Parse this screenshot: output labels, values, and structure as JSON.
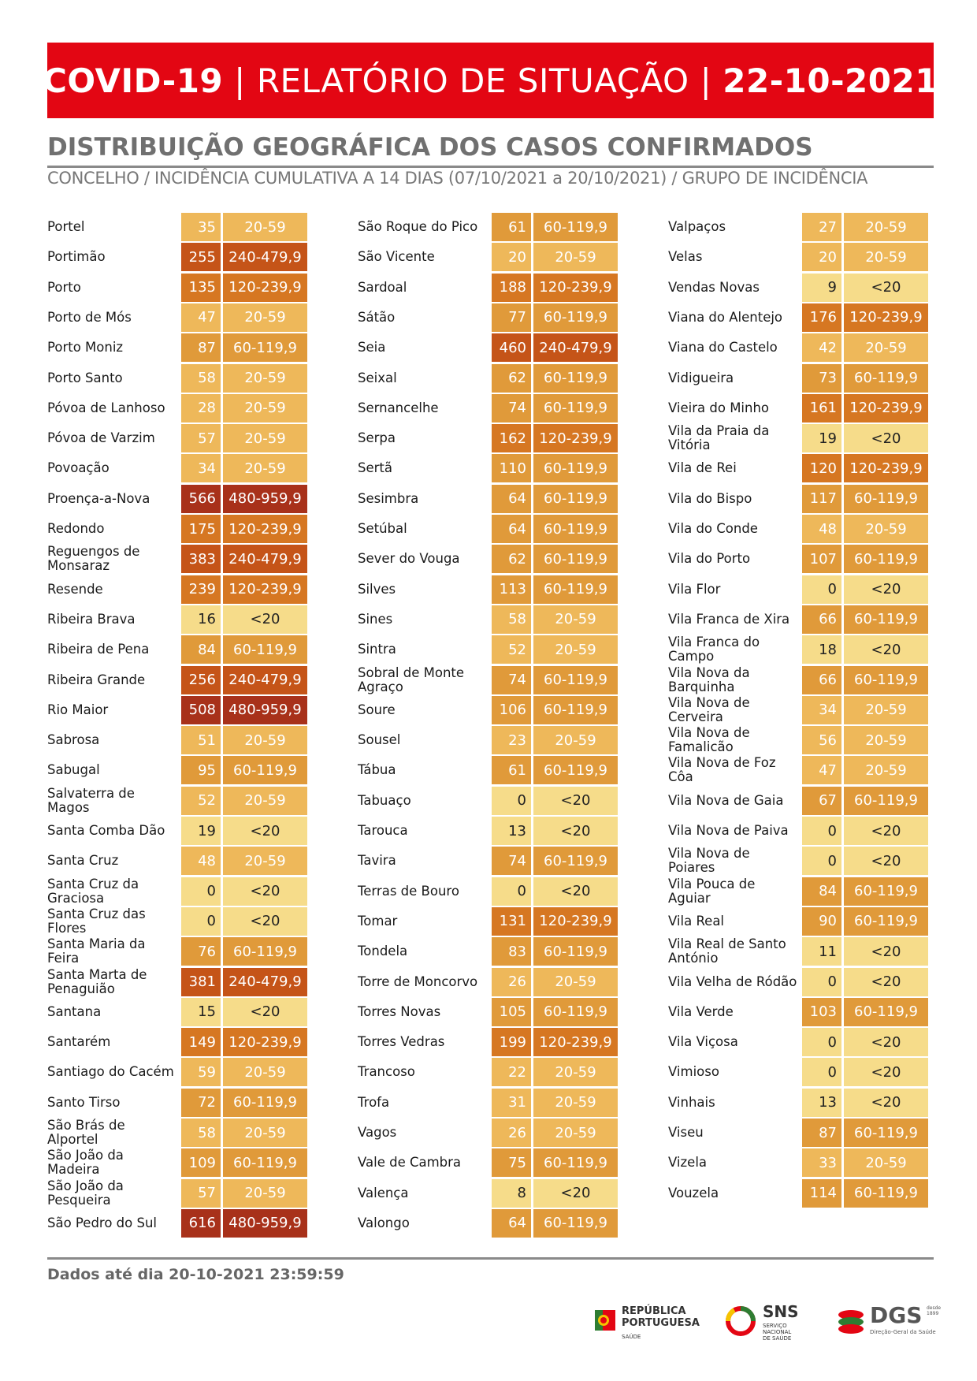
{
  "header": {
    "title_left": "COVID-19",
    "title_mid": "RELATÓRIO DE SITUAÇÃO",
    "title_date": "22-10-2021",
    "separator": "|",
    "bg_color": "#e30613"
  },
  "section": {
    "title": "DISTRIBUIÇÃO GEOGRÁFICA DOS CASOS CONFIRMADOS",
    "subtitle": "CONCELHO / INCIDÊNCIA CUMULATIVA A 14 DIAS (07/10/2021 a 20/10/2021) / GRUPO DE INCIDÊNCIA"
  },
  "group_colors": {
    "<20": "#f6dc8a",
    "20-59": "#eeb85a",
    "60-119,9": "#e09a3a",
    "120-239,9": "#d67722",
    "240-479,9": "#c55418",
    "480-959,9": "#a8311a"
  },
  "columns": [
    [
      {
        "name": "Portel",
        "value": "35",
        "group": "20-59"
      },
      {
        "name": "Portimão",
        "value": "255",
        "group": "240-479,9"
      },
      {
        "name": "Porto",
        "value": "135",
        "group": "120-239,9"
      },
      {
        "name": "Porto de Mós",
        "value": "47",
        "group": "20-59"
      },
      {
        "name": "Porto Moniz",
        "value": "87",
        "group": "60-119,9"
      },
      {
        "name": "Porto Santo",
        "value": "58",
        "group": "20-59"
      },
      {
        "name": "Póvoa de Lanhoso",
        "value": "28",
        "group": "20-59"
      },
      {
        "name": "Póvoa de Varzim",
        "value": "57",
        "group": "20-59"
      },
      {
        "name": "Povoação",
        "value": "34",
        "group": "20-59"
      },
      {
        "name": "Proença-a-Nova",
        "value": "566",
        "group": "480-959,9"
      },
      {
        "name": "Redondo",
        "value": "175",
        "group": "120-239,9"
      },
      {
        "name": "Reguengos de Monsaraz",
        "value": "383",
        "group": "240-479,9"
      },
      {
        "name": "Resende",
        "value": "239",
        "group": "120-239,9"
      },
      {
        "name": "Ribeira Brava",
        "value": "16",
        "group": "<20"
      },
      {
        "name": "Ribeira de Pena",
        "value": "84",
        "group": "60-119,9"
      },
      {
        "name": "Ribeira Grande",
        "value": "256",
        "group": "240-479,9"
      },
      {
        "name": "Rio Maior",
        "value": "508",
        "group": "480-959,9"
      },
      {
        "name": "Sabrosa",
        "value": "51",
        "group": "20-59"
      },
      {
        "name": "Sabugal",
        "value": "95",
        "group": "60-119,9"
      },
      {
        "name": "Salvaterra de Magos",
        "value": "52",
        "group": "20-59"
      },
      {
        "name": "Santa Comba Dão",
        "value": "19",
        "group": "<20"
      },
      {
        "name": "Santa Cruz",
        "value": "48",
        "group": "20-59"
      },
      {
        "name": "Santa Cruz da Graciosa",
        "value": "0",
        "group": "<20"
      },
      {
        "name": "Santa Cruz das Flores",
        "value": "0",
        "group": "<20"
      },
      {
        "name": "Santa Maria da Feira",
        "value": "76",
        "group": "60-119,9"
      },
      {
        "name": "Santa Marta de Penaguião",
        "value": "381",
        "group": "240-479,9"
      },
      {
        "name": "Santana",
        "value": "15",
        "group": "<20"
      },
      {
        "name": "Santarém",
        "value": "149",
        "group": "120-239,9"
      },
      {
        "name": "Santiago do Cacém",
        "value": "59",
        "group": "20-59"
      },
      {
        "name": "Santo Tirso",
        "value": "72",
        "group": "60-119,9"
      },
      {
        "name": "São Brás de Alportel",
        "value": "58",
        "group": "20-59"
      },
      {
        "name": "São João da Madeira",
        "value": "109",
        "group": "60-119,9"
      },
      {
        "name": "São João da Pesqueira",
        "value": "57",
        "group": "20-59"
      },
      {
        "name": "São Pedro do Sul",
        "value": "616",
        "group": "480-959,9"
      }
    ],
    [
      {
        "name": "São Roque do Pico",
        "value": "61",
        "group": "60-119,9"
      },
      {
        "name": "São Vicente",
        "value": "20",
        "group": "20-59"
      },
      {
        "name": "Sardoal",
        "value": "188",
        "group": "120-239,9"
      },
      {
        "name": "Sátão",
        "value": "77",
        "group": "60-119,9"
      },
      {
        "name": "Seia",
        "value": "460",
        "group": "240-479,9"
      },
      {
        "name": "Seixal",
        "value": "62",
        "group": "60-119,9"
      },
      {
        "name": "Sernancelhe",
        "value": "74",
        "group": "60-119,9"
      },
      {
        "name": "Serpa",
        "value": "162",
        "group": "120-239,9"
      },
      {
        "name": "Sertã",
        "value": "110",
        "group": "60-119,9"
      },
      {
        "name": "Sesimbra",
        "value": "64",
        "group": "60-119,9"
      },
      {
        "name": "Setúbal",
        "value": "64",
        "group": "60-119,9"
      },
      {
        "name": "Sever do Vouga",
        "value": "62",
        "group": "60-119,9"
      },
      {
        "name": "Silves",
        "value": "113",
        "group": "60-119,9"
      },
      {
        "name": "Sines",
        "value": "58",
        "group": "20-59"
      },
      {
        "name": "Sintra",
        "value": "52",
        "group": "20-59"
      },
      {
        "name": "Sobral de Monte Agraço",
        "value": "74",
        "group": "60-119,9"
      },
      {
        "name": "Soure",
        "value": "106",
        "group": "60-119,9"
      },
      {
        "name": "Sousel",
        "value": "23",
        "group": "20-59"
      },
      {
        "name": "Tábua",
        "value": "61",
        "group": "60-119,9"
      },
      {
        "name": "Tabuaço",
        "value": "0",
        "group": "<20"
      },
      {
        "name": "Tarouca",
        "value": "13",
        "group": "<20"
      },
      {
        "name": "Tavira",
        "value": "74",
        "group": "60-119,9"
      },
      {
        "name": "Terras de Bouro",
        "value": "0",
        "group": "<20"
      },
      {
        "name": "Tomar",
        "value": "131",
        "group": "120-239,9"
      },
      {
        "name": "Tondela",
        "value": "83",
        "group": "60-119,9"
      },
      {
        "name": "Torre de Moncorvo",
        "value": "26",
        "group": "20-59"
      },
      {
        "name": "Torres Novas",
        "value": "105",
        "group": "60-119,9"
      },
      {
        "name": "Torres Vedras",
        "value": "199",
        "group": "120-239,9"
      },
      {
        "name": "Trancoso",
        "value": "22",
        "group": "20-59"
      },
      {
        "name": "Trofa",
        "value": "31",
        "group": "20-59"
      },
      {
        "name": "Vagos",
        "value": "26",
        "group": "20-59"
      },
      {
        "name": "Vale de Cambra",
        "value": "75",
        "group": "60-119,9"
      },
      {
        "name": "Valença",
        "value": "8",
        "group": "<20"
      },
      {
        "name": "Valongo",
        "value": "64",
        "group": "60-119,9"
      }
    ],
    [
      {
        "name": "Valpaços",
        "value": "27",
        "group": "20-59"
      },
      {
        "name": "Velas",
        "value": "20",
        "group": "20-59"
      },
      {
        "name": "Vendas Novas",
        "value": "9",
        "group": "<20"
      },
      {
        "name": "Viana do Alentejo",
        "value": "176",
        "group": "120-239,9"
      },
      {
        "name": "Viana do Castelo",
        "value": "42",
        "group": "20-59"
      },
      {
        "name": "Vidigueira",
        "value": "73",
        "group": "60-119,9"
      },
      {
        "name": "Vieira do Minho",
        "value": "161",
        "group": "120-239,9"
      },
      {
        "name": "Vila da Praia da Vitória",
        "value": "19",
        "group": "<20"
      },
      {
        "name": "Vila de Rei",
        "value": "120",
        "group": "120-239,9"
      },
      {
        "name": "Vila do Bispo",
        "value": "117",
        "group": "60-119,9"
      },
      {
        "name": "Vila do Conde",
        "value": "48",
        "group": "20-59"
      },
      {
        "name": "Vila do Porto",
        "value": "107",
        "group": "60-119,9"
      },
      {
        "name": "Vila Flor",
        "value": "0",
        "group": "<20"
      },
      {
        "name": "Vila Franca de Xira",
        "value": "66",
        "group": "60-119,9"
      },
      {
        "name": "Vila Franca do Campo",
        "value": "18",
        "group": "<20"
      },
      {
        "name": "Vila Nova da Barquinha",
        "value": "66",
        "group": "60-119,9"
      },
      {
        "name": "Vila Nova de Cerveira",
        "value": "34",
        "group": "20-59"
      },
      {
        "name": "Vila Nova de Famalicão",
        "value": "56",
        "group": "20-59"
      },
      {
        "name": "Vila Nova de Foz Côa",
        "value": "47",
        "group": "20-59"
      },
      {
        "name": "Vila Nova de Gaia",
        "value": "67",
        "group": "60-119,9"
      },
      {
        "name": "Vila Nova de Paiva",
        "value": "0",
        "group": "<20"
      },
      {
        "name": "Vila Nova de Poiares",
        "value": "0",
        "group": "<20"
      },
      {
        "name": "Vila Pouca de Aguiar",
        "value": "84",
        "group": "60-119,9"
      },
      {
        "name": "Vila Real",
        "value": "90",
        "group": "60-119,9"
      },
      {
        "name": "Vila Real de Santo António",
        "value": "11",
        "group": "<20"
      },
      {
        "name": "Vila Velha de Ródão",
        "value": "0",
        "group": "<20"
      },
      {
        "name": "Vila Verde",
        "value": "103",
        "group": "60-119,9"
      },
      {
        "name": "Vila Viçosa",
        "value": "0",
        "group": "<20"
      },
      {
        "name": "Vimioso",
        "value": "0",
        "group": "<20"
      },
      {
        "name": "Vinhais",
        "value": "13",
        "group": "<20"
      },
      {
        "name": "Viseu",
        "value": "87",
        "group": "60-119,9"
      },
      {
        "name": "Vizela",
        "value": "33",
        "group": "20-59"
      },
      {
        "name": "Vouzela",
        "value": "114",
        "group": "60-119,9"
      }
    ]
  ],
  "footer": {
    "data_date": "Dados até dia 20-10-2021 23:59:59"
  },
  "logos": {
    "republica": {
      "line1": "REPÚBLICA",
      "line2": "PORTUGUESA",
      "line3": "SAÚDE"
    },
    "sns": {
      "big": "SNS",
      "small1": "SERVIÇO NACIONAL",
      "small2": "DE SAÚDE"
    },
    "dgs": {
      "big": "DGS",
      "small": "Direção-Geral da Saúde",
      "since1": "desde",
      "since2": "1899"
    }
  }
}
